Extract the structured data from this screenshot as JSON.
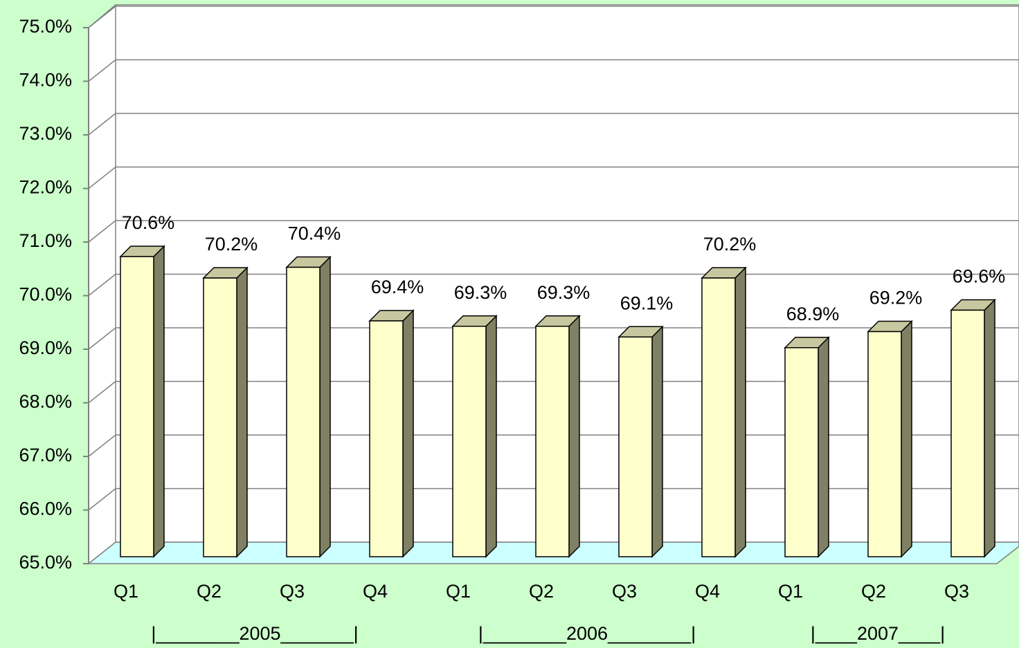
{
  "chart_data": {
    "type": "bar3d",
    "groups": [
      {
        "label": "|________2005_______|",
        "categories": [
          "Q1",
          "Q2",
          "Q3",
          "Q4"
        ]
      },
      {
        "label": "|________2006________|",
        "categories": [
          "Q1",
          "Q2",
          "Q3",
          "Q4"
        ]
      },
      {
        "label": "|____2007____|",
        "categories": [
          "Q1",
          "Q2",
          "Q3"
        ]
      }
    ],
    "values": [
      70.6,
      70.2,
      70.4,
      69.4,
      69.3,
      69.3,
      69.1,
      70.2,
      68.9,
      69.2,
      69.6
    ],
    "value_labels": [
      "70.6%",
      "70.2%",
      "70.4%",
      "69.4%",
      "69.3%",
      "69.3%",
      "69.1%",
      "70.2%",
      "68.9%",
      "69.2%",
      "69.6%"
    ],
    "color": "#FFFFCC",
    "ylim": [
      65,
      75
    ],
    "yticks": [
      {
        "value": 65,
        "label": "65.0%"
      },
      {
        "value": 66,
        "label": "66.0%"
      },
      {
        "value": 67,
        "label": "67.0%"
      },
      {
        "value": 68,
        "label": "68.0%"
      },
      {
        "value": 69,
        "label": "69.0%"
      },
      {
        "value": 70,
        "label": "70.0%"
      },
      {
        "value": 71,
        "label": "71.0%"
      },
      {
        "value": 72,
        "label": "72.0%"
      },
      {
        "value": 73,
        "label": "73.0%"
      },
      {
        "value": 74,
        "label": "74.0%"
      },
      {
        "value": 75,
        "label": "75.0%"
      }
    ],
    "grid": true
  }
}
